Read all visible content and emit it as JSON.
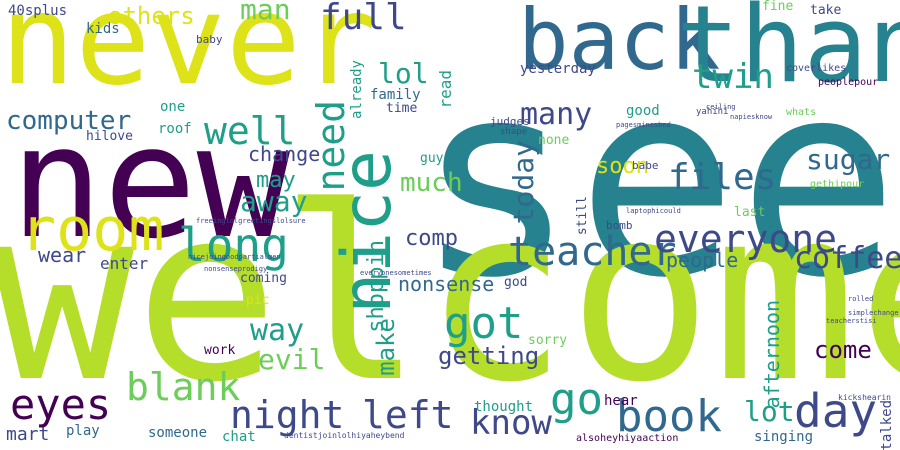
{
  "palette": {
    "yellow": "#dde318",
    "lime": "#b5de2b",
    "green": "#6ccd5a",
    "teal": "#1f9e89",
    "cyan": "#26828e",
    "steel": "#31688e",
    "indigo": "#3e4989",
    "purple": "#440154",
    "violet": "#482878"
  },
  "words": {
    "see": "see",
    "welcome": "welcome",
    "new": "new",
    "never": "never",
    "back": "back",
    "thank": "thank",
    "room": "room",
    "nice": "nice",
    "teacher": "teacher",
    "long": "long",
    "book": "book",
    "everyone": "everyone",
    "night": "night",
    "left": "left",
    "eyes": "eyes",
    "blank": "blank",
    "got": "got",
    "go": "go",
    "well": "well",
    "know": "know",
    "day": "day",
    "twin": "twin",
    "need": "need",
    "files": "files",
    "full": "full",
    "computer": "computer",
    "sugar": "sugar",
    "coffee": "coffee",
    "many": "many",
    "lol": "lol",
    "man": "man",
    "others": "others",
    "much": "much",
    "today": "today",
    "way": "way",
    "evil": "evil",
    "getting": "getting",
    "away": "away",
    "may": "may",
    "lot": "lot",
    "come": "come",
    "make": "make",
    "shoppin": "shoppin",
    "comp": "comp",
    "nonsense": "nonsense",
    "people": "people",
    "soon": "soon",
    "change": "change",
    "enter": "enter",
    "wear": "wear",
    "afternoon": "afternoon",
    "40splus": "40splus",
    "kids": "kids",
    "mart": "mart",
    "play": "play",
    "someone": "someone",
    "chat": "chat",
    "thought": "thought",
    "singing": "singing",
    "talked": "talked",
    "hear": "hear",
    "yesterday": "yesterday",
    "good": "good",
    "family": "family",
    "read": "read",
    "already": "already",
    "roof": "roof",
    "hilove": "hilove",
    "one": "one",
    "time": "time",
    "guy": "guy",
    "none": "none",
    "still": "still",
    "last": "last",
    "fine": "fine",
    "take": "take",
    "babe": "babe",
    "baby": "baby",
    "pic": "pic",
    "work": "work",
    "coming": "coming",
    "sorry": "sorry",
    "god": "god",
    "judges": "judges",
    "bomb": "bomb",
    "coverlikes": "coverlikes",
    "peoplepour": "peoplepour",
    "gethipour": "gethipour",
    "whats": "whats",
    "yahihi": "yahihi",
    "shape": "shape",
    "dentistjoinlolhiyaheybend": "dentistjoinlolhiyaheybend",
    "alsoheyhiyaaction": "alsoheyhiyaaction",
    "kickshearin": "kickshearin",
    "nonsenseprodigy": "nonsenseprodigy",
    "nicejoingoodpartialmen": "nicejoingoodpartialmen",
    "freeinglolgreetingslolsure": "freeinglolgreetingslolsure",
    "pagesminesbed": "pagesminesbed",
    "everyonesometimes": "everyonesometimes",
    "ceiling": "ceiling",
    "napiesknow": "napiesknow",
    "laptophicould": "laptophicould",
    "rolled": "rolled",
    "simplechange": "simplechange",
    "teacherstisi": "teacherstisi"
  }
}
